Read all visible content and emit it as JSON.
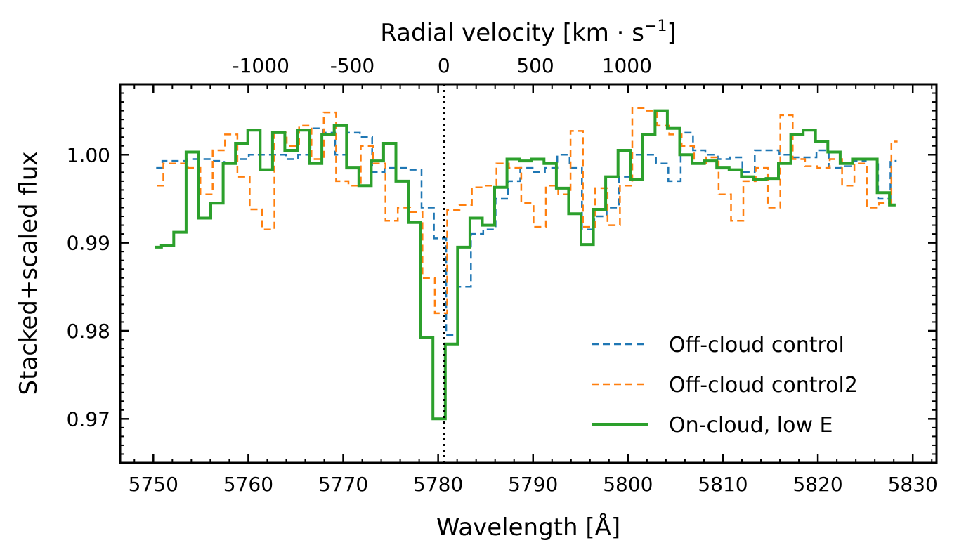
{
  "chart_data": {
    "type": "line",
    "drawstyle": "steps-mid",
    "xlabel": "Wavelength [Å]",
    "ylabel": "Stacked+scaled flux",
    "top_axis_label_prefix": "Radial velocity [km · s",
    "top_axis_label_exp": "−1",
    "top_axis_label_suffix": "]",
    "xlim": [
      5746.5,
      5832.5
    ],
    "ylim": [
      0.965,
      1.008
    ],
    "x_ticks": [
      5750,
      5760,
      5770,
      5780,
      5790,
      5800,
      5810,
      5820,
      5830
    ],
    "x_tick_labels": [
      "5750",
      "5760",
      "5770",
      "5780",
      "5790",
      "5800",
      "5810",
      "5820",
      "5830"
    ],
    "y_ticks": [
      0.97,
      0.98,
      0.99,
      1.0
    ],
    "y_tick_labels": [
      "0.97",
      "0.98",
      "0.99",
      "1.00"
    ],
    "top_ticks": [
      -1000,
      -500,
      0,
      500,
      1000
    ],
    "top_tick_labels": [
      "-1000",
      "-500",
      "0",
      "500",
      "1000"
    ],
    "rest_wavelength": 5780.6,
    "vline": 5780.6,
    "legend_position": "lower-right",
    "legend": [
      "Off-cloud control",
      "Off-cloud control2",
      "On-cloud, low E"
    ],
    "series": [
      {
        "name": "Off-cloud control",
        "color": "#1f77b4",
        "style": "dashed",
        "x": [
          5750.3,
          5751.6,
          5752.9,
          5754.2,
          5755.5,
          5756.8,
          5758.1,
          5759.4,
          5760.7,
          5762.0,
          5763.3,
          5764.6,
          5765.9,
          5767.2,
          5768.5,
          5769.8,
          5771.1,
          5772.4,
          5773.7,
          5775.0,
          5776.3,
          5777.6,
          5778.9,
          5780.2,
          5781.5,
          5782.8,
          5784.1,
          5785.4,
          5786.7,
          5788.0,
          5789.3,
          5790.6,
          5791.9,
          5793.2,
          5794.5,
          5795.8,
          5797.1,
          5798.4,
          5799.7,
          5801.0,
          5802.3,
          5803.6,
          5804.9,
          5806.2,
          5807.5,
          5808.8,
          5810.1,
          5811.4,
          5812.7,
          5814.0,
          5815.3,
          5816.6,
          5817.9,
          5819.2,
          5820.5,
          5821.8,
          5823.1,
          5824.4,
          5825.7,
          5827.0,
          5828.3
        ],
        "y": [
          0.9985,
          0.9993,
          0.9993,
          0.9995,
          0.9995,
          0.9993,
          0.999,
          0.9995,
          1.0,
          1.0,
          1.0,
          0.9995,
          1.0,
          1.003,
          1.0025,
          1.0,
          1.0025,
          1.002,
          0.998,
          0.9985,
          0.9985,
          0.9983,
          0.994,
          0.9905,
          0.9795,
          0.985,
          0.991,
          0.9915,
          0.995,
          0.997,
          0.9985,
          0.998,
          0.9985,
          1.0,
          0.9985,
          0.9915,
          0.993,
          0.994,
          0.9975,
          1.0,
          1.0,
          0.999,
          0.997,
          1.0025,
          1.0005,
          1.0,
          0.9995,
          0.9997,
          0.998,
          1.0005,
          1.0005,
          1.0,
          0.9997,
          0.9997,
          1.0005,
          0.9985,
          0.9987,
          0.9993,
          0.9995,
          0.995,
          0.9993
        ]
      },
      {
        "name": "Off-cloud control2",
        "color": "#ff7f0e",
        "style": "dashed",
        "x": [
          5750.4,
          5751.7,
          5753.0,
          5754.3,
          5755.6,
          5756.9,
          5758.2,
          5759.5,
          5760.8,
          5762.1,
          5763.4,
          5764.7,
          5766.0,
          5767.3,
          5768.6,
          5769.9,
          5771.2,
          5772.5,
          5773.8,
          5775.1,
          5776.4,
          5777.7,
          5779.0,
          5780.3,
          5781.6,
          5782.9,
          5784.2,
          5785.5,
          5786.8,
          5788.1,
          5789.4,
          5790.7,
          5792.0,
          5793.3,
          5794.6,
          5795.9,
          5797.2,
          5798.5,
          5799.8,
          5801.1,
          5802.4,
          5803.7,
          5805.0,
          5806.3,
          5807.6,
          5808.9,
          5810.2,
          5811.5,
          5812.8,
          5814.1,
          5815.4,
          5816.7,
          5818.0,
          5819.3,
          5820.6,
          5821.9,
          5823.2,
          5824.5,
          5825.8,
          5827.1,
          5828.4
        ],
        "y": [
          0.9965,
          0.999,
          0.999,
          0.9985,
          0.9955,
          1.0005,
          1.0023,
          0.9975,
          0.9938,
          0.9915,
          1.0025,
          1.001,
          1.0033,
          0.9995,
          1.0048,
          0.997,
          0.9965,
          1.001,
          0.999,
          0.9925,
          0.994,
          0.9935,
          0.986,
          0.982,
          0.9937,
          0.9943,
          0.9963,
          0.9965,
          0.999,
          0.9985,
          0.9945,
          0.9918,
          0.9965,
          0.9955,
          1.0027,
          0.9918,
          0.9962,
          0.992,
          0.9965,
          1.0053,
          1.005,
          1.0033,
          1.0023,
          1.001,
          0.999,
          0.9997,
          0.9955,
          0.9925,
          0.997,
          0.9985,
          0.994,
          1.0045,
          0.9995,
          0.9987,
          0.9985,
          0.9995,
          0.9965,
          0.999,
          0.994,
          0.9945,
          1.0015
        ]
      },
      {
        "name": "On-cloud, low E",
        "color": "#2ca02c",
        "style": "solid",
        "x": [
          5750.2,
          5751.5,
          5752.8,
          5754.1,
          5755.4,
          5756.7,
          5758.0,
          5759.3,
          5760.6,
          5761.9,
          5763.2,
          5764.5,
          5765.8,
          5767.1,
          5768.4,
          5769.7,
          5771.0,
          5772.3,
          5773.6,
          5774.9,
          5776.2,
          5777.5,
          5778.8,
          5780.1,
          5781.4,
          5782.7,
          5784.0,
          5785.3,
          5786.6,
          5787.9,
          5789.2,
          5790.5,
          5791.8,
          5793.1,
          5794.4,
          5795.7,
          5797.0,
          5798.3,
          5799.6,
          5800.9,
          5802.2,
          5803.5,
          5804.8,
          5806.1,
          5807.4,
          5808.7,
          5810.0,
          5811.3,
          5812.6,
          5813.9,
          5815.2,
          5816.5,
          5817.8,
          5819.1,
          5820.4,
          5821.7,
          5823.0,
          5824.3,
          5825.6,
          5826.9,
          5828.2
        ],
        "y": [
          0.9895,
          0.9897,
          0.9912,
          1.0003,
          0.9928,
          0.9945,
          0.999,
          1.0013,
          1.0028,
          0.9983,
          1.0025,
          1.0005,
          1.0028,
          0.999,
          1.0023,
          1.0033,
          0.9985,
          0.9965,
          0.9993,
          1.0013,
          0.997,
          0.9923,
          0.9792,
          0.97,
          0.9785,
          0.9895,
          0.9928,
          0.992,
          0.9963,
          0.9995,
          0.9993,
          0.9995,
          0.999,
          0.9962,
          0.9933,
          0.9898,
          0.9938,
          0.9975,
          1.0005,
          0.9972,
          1.0023,
          1.005,
          1.003,
          1.0,
          0.999,
          0.9993,
          0.9985,
          0.9983,
          0.9975,
          0.9972,
          0.9973,
          0.999,
          1.0023,
          1.0028,
          1.0015,
          1.0003,
          0.999,
          0.9995,
          0.9995,
          0.9957,
          0.9943
        ]
      }
    ]
  }
}
